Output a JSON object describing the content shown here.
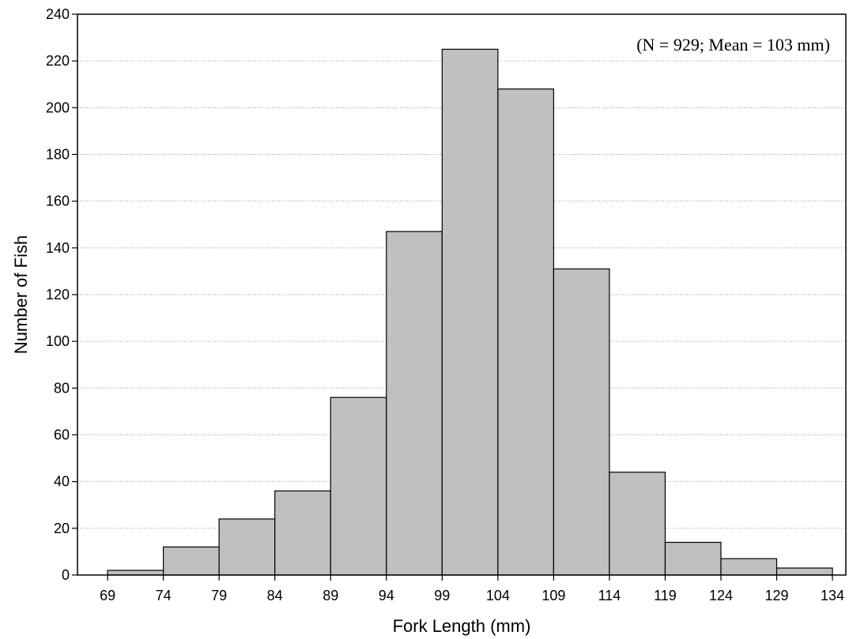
{
  "chart_data": {
    "type": "bar",
    "subtype": "histogram",
    "bin_edges": [
      69,
      74,
      79,
      84,
      89,
      94,
      99,
      104,
      109,
      114,
      119,
      124,
      129,
      134
    ],
    "values": [
      2,
      12,
      24,
      36,
      76,
      147,
      225,
      208,
      131,
      44,
      14,
      7,
      3
    ],
    "xlabel": "Fork Length (mm)",
    "ylabel": "Number of Fish",
    "annotation": "(N = 929; Mean = 103 mm)",
    "xlim": [
      66.3,
      135.2
    ],
    "ylim": [
      0,
      240
    ],
    "yticks": [
      0,
      20,
      40,
      60,
      80,
      100,
      120,
      140,
      160,
      180,
      200,
      220,
      240
    ],
    "xticks": [
      69,
      74,
      79,
      84,
      89,
      94,
      99,
      104,
      109,
      114,
      119,
      124,
      129,
      134
    ],
    "grid": "horizontal dotted",
    "bar_color": "#c0c0c0",
    "bar_edge_color": "#000000"
  }
}
